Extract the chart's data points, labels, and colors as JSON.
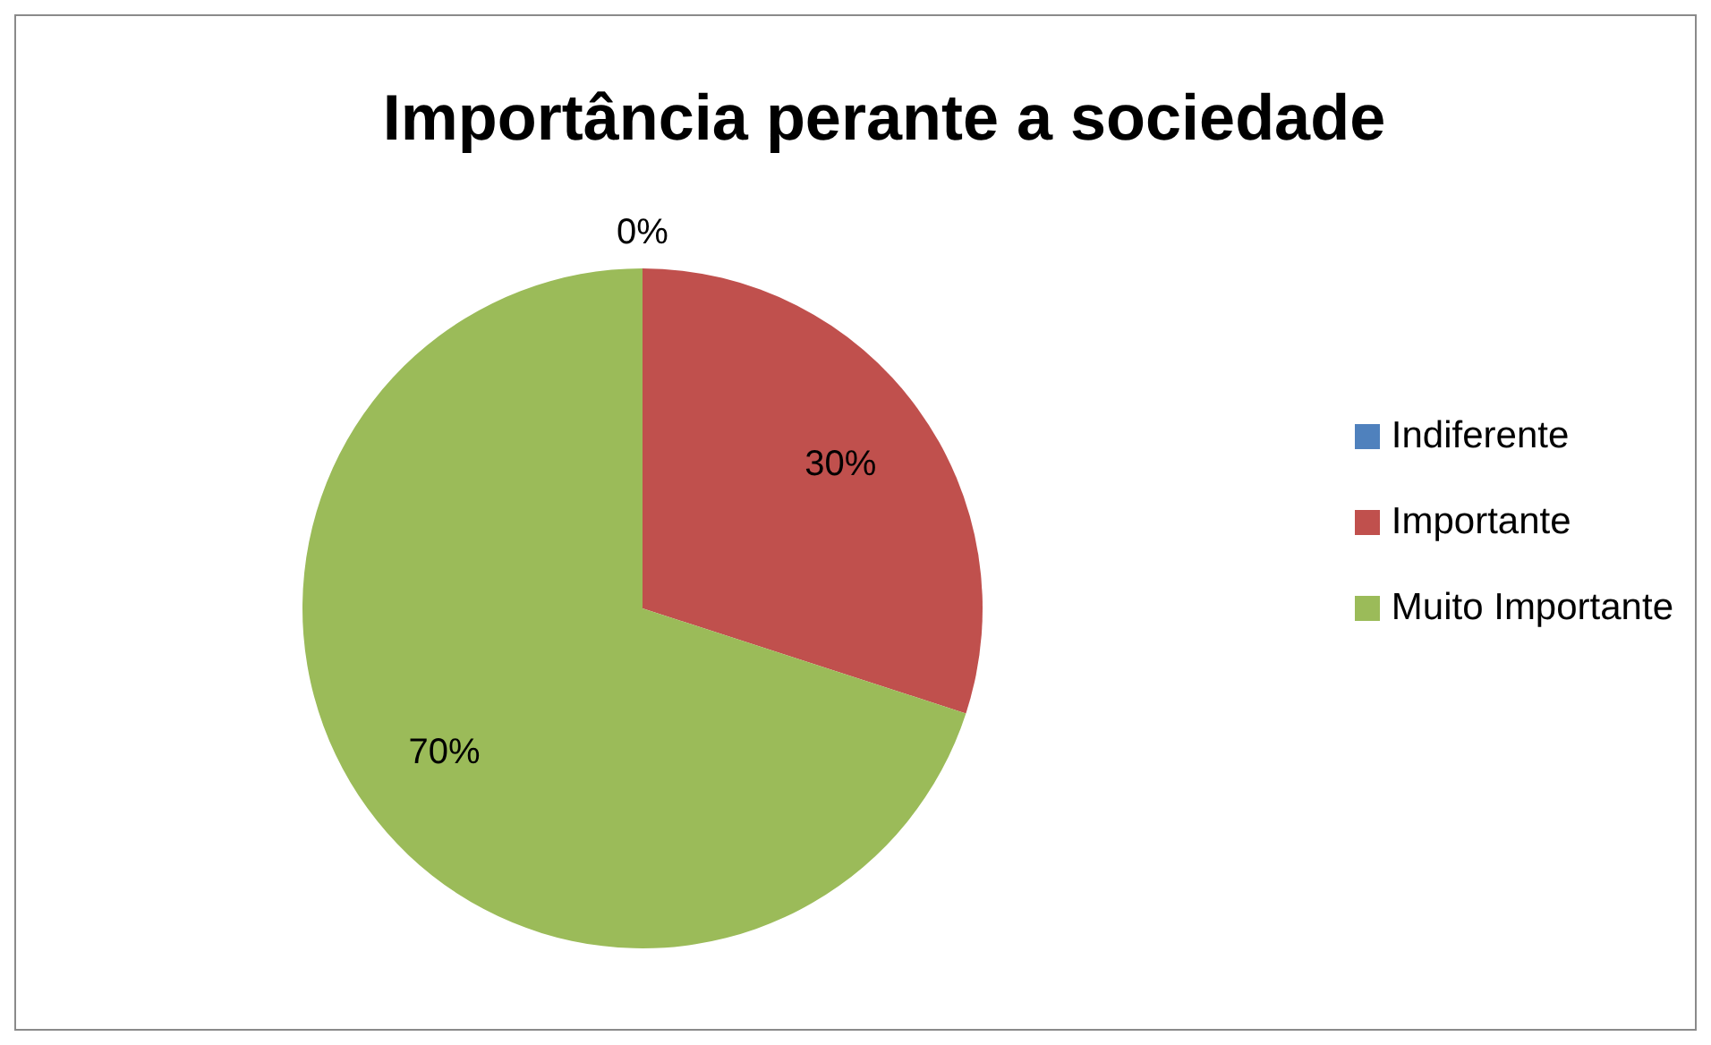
{
  "chart_data": {
    "type": "pie",
    "title": "Importância perante a sociedade",
    "categories": [
      "Indiferente",
      "Importante",
      "Muito Importante"
    ],
    "values": [
      0,
      30,
      70
    ],
    "colors": [
      "#4f81bd",
      "#c0504d",
      "#9bbb59"
    ],
    "value_labels": [
      "0%",
      "30%",
      "70%"
    ],
    "legend": "right"
  }
}
